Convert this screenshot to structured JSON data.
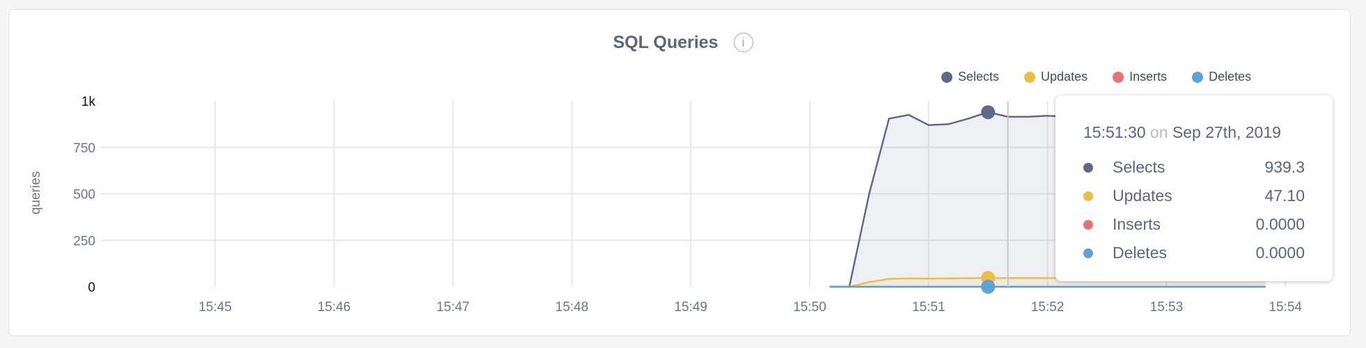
{
  "title": "SQL Queries",
  "info_icon": "info-circle-icon",
  "colors": {
    "Selects": "#5e6a87",
    "Updates": "#eebd45",
    "Inserts": "#e57373",
    "Deletes": "#5ea3d6"
  },
  "tooltip": {
    "time": "15:51:30",
    "on": "on",
    "date": "Sep 27th, 2019",
    "rows": [
      {
        "name": "Selects",
        "value": "939.3"
      },
      {
        "name": "Updates",
        "value": "47.10"
      },
      {
        "name": "Inserts",
        "value": "0.0000"
      },
      {
        "name": "Deletes",
        "value": "0.0000"
      }
    ]
  },
  "chart_data": {
    "type": "area",
    "title": "SQL Queries",
    "ylabel": "queries",
    "xlabel": "",
    "ylim": [
      0,
      1000
    ],
    "yticks": [
      "0",
      "250",
      "500",
      "750",
      "1k"
    ],
    "ytick_values": [
      0,
      250,
      500,
      750,
      1000
    ],
    "xticks": [
      "15:45",
      "15:46",
      "15:47",
      "15:48",
      "15:49",
      "15:50",
      "15:51",
      "15:52",
      "15:53",
      "15:54"
    ],
    "xlim": [
      "15:44:20",
      "15:54:10"
    ],
    "grid": true,
    "legend_position": "top-right",
    "hover_time": "15:51:30",
    "x": [
      "15:50:10",
      "15:50:20",
      "15:50:30",
      "15:50:40",
      "15:50:50",
      "15:51:00",
      "15:51:10",
      "15:51:20",
      "15:51:30",
      "15:51:40",
      "15:51:50",
      "15:52:00",
      "15:52:10",
      "15:52:20",
      "15:52:30",
      "15:52:40",
      "15:52:50",
      "15:53:00",
      "15:53:10",
      "15:53:20",
      "15:53:30",
      "15:53:40",
      "15:53:50"
    ],
    "series": [
      {
        "name": "Selects",
        "values": [
          0,
          0,
          500,
          905,
          925,
          870,
          875,
          905,
          939.3,
          915,
          915,
          920,
          915,
          920,
          918,
          915,
          920,
          918,
          915,
          920,
          918,
          915,
          918
        ]
      },
      {
        "name": "Updates",
        "values": [
          0,
          0,
          25,
          42,
          45,
          44,
          45,
          46,
          47.1,
          47,
          47,
          47,
          47,
          47,
          47,
          47,
          47,
          47,
          47,
          47,
          47,
          47,
          47
        ]
      },
      {
        "name": "Inserts",
        "values": [
          0,
          0,
          0,
          0,
          0,
          0,
          0,
          0,
          0,
          0,
          0,
          0,
          0,
          0,
          0,
          0,
          0,
          0,
          0,
          0,
          0,
          0,
          0
        ]
      },
      {
        "name": "Deletes",
        "values": [
          0,
          0,
          0,
          0,
          0,
          0,
          0,
          0,
          0,
          0,
          0,
          0,
          0,
          0,
          0,
          0,
          0,
          0,
          0,
          0,
          0,
          0,
          0
        ]
      }
    ]
  }
}
